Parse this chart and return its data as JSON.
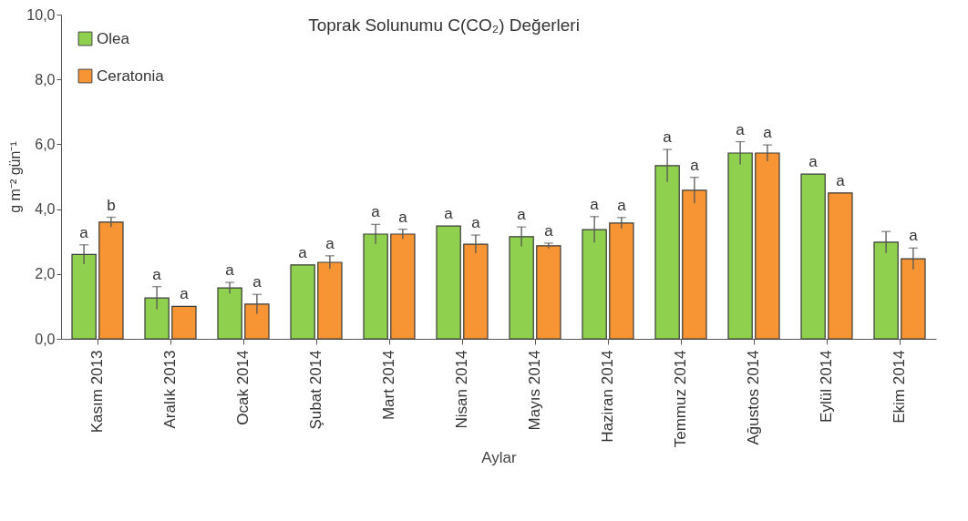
{
  "chart_data": {
    "type": "bar",
    "title": "Toprak Solunumu  C(CO₂) Değerleri",
    "xlabel": "Aylar",
    "ylabel": "g m⁻² gün⁻¹",
    "categories": [
      "Kasım 2013",
      "Aralık 2013",
      "Ocak 2014",
      "Şubat 2014",
      "Mart 2014",
      "Nisan 2014",
      "Mayıs 2014",
      "Haziran 2014",
      "Temmuz 2014",
      "Ağustos 2014",
      "Eylül 2014",
      "Ekim 2014"
    ],
    "series": [
      {
        "name": "Olea",
        "color": "#8fd14f",
        "values": [
          2.6,
          1.26,
          1.57,
          2.28,
          3.23,
          3.48,
          3.15,
          3.37,
          5.34,
          5.73,
          5.08,
          2.98
        ],
        "errors": [
          0.3,
          0.35,
          0.17,
          null,
          0.3,
          null,
          0.3,
          0.4,
          0.5,
          0.35,
          null,
          0.33
        ],
        "value_labels": [
          "a",
          "a",
          "a",
          "a",
          "a",
          "a",
          "a",
          "a",
          "a",
          "a",
          "a",
          null
        ]
      },
      {
        "name": "Ceratonia",
        "color": "#f79433",
        "values": [
          3.6,
          1.0,
          1.07,
          2.36,
          3.23,
          2.92,
          2.87,
          3.57,
          4.58,
          5.73,
          4.5,
          2.47
        ],
        "errors": [
          0.15,
          null,
          0.3,
          0.2,
          0.15,
          0.28,
          0.08,
          0.17,
          0.4,
          0.25,
          null,
          0.33
        ],
        "value_labels": [
          "b",
          "a",
          "a",
          "a",
          "a",
          "a",
          "a",
          "a",
          "a",
          "a",
          "a",
          "a"
        ]
      }
    ],
    "ylim": [
      0,
      10
    ],
    "yticks": [
      {
        "value": 0,
        "label": "0,0"
      },
      {
        "value": 2,
        "label": "2,0"
      },
      {
        "value": 4,
        "label": "4,0"
      },
      {
        "value": 6,
        "label": "6,0"
      },
      {
        "value": 8,
        "label": "8,0"
      },
      {
        "value": 10,
        "label": "10,0"
      }
    ],
    "grid": false,
    "legend": "top left"
  }
}
